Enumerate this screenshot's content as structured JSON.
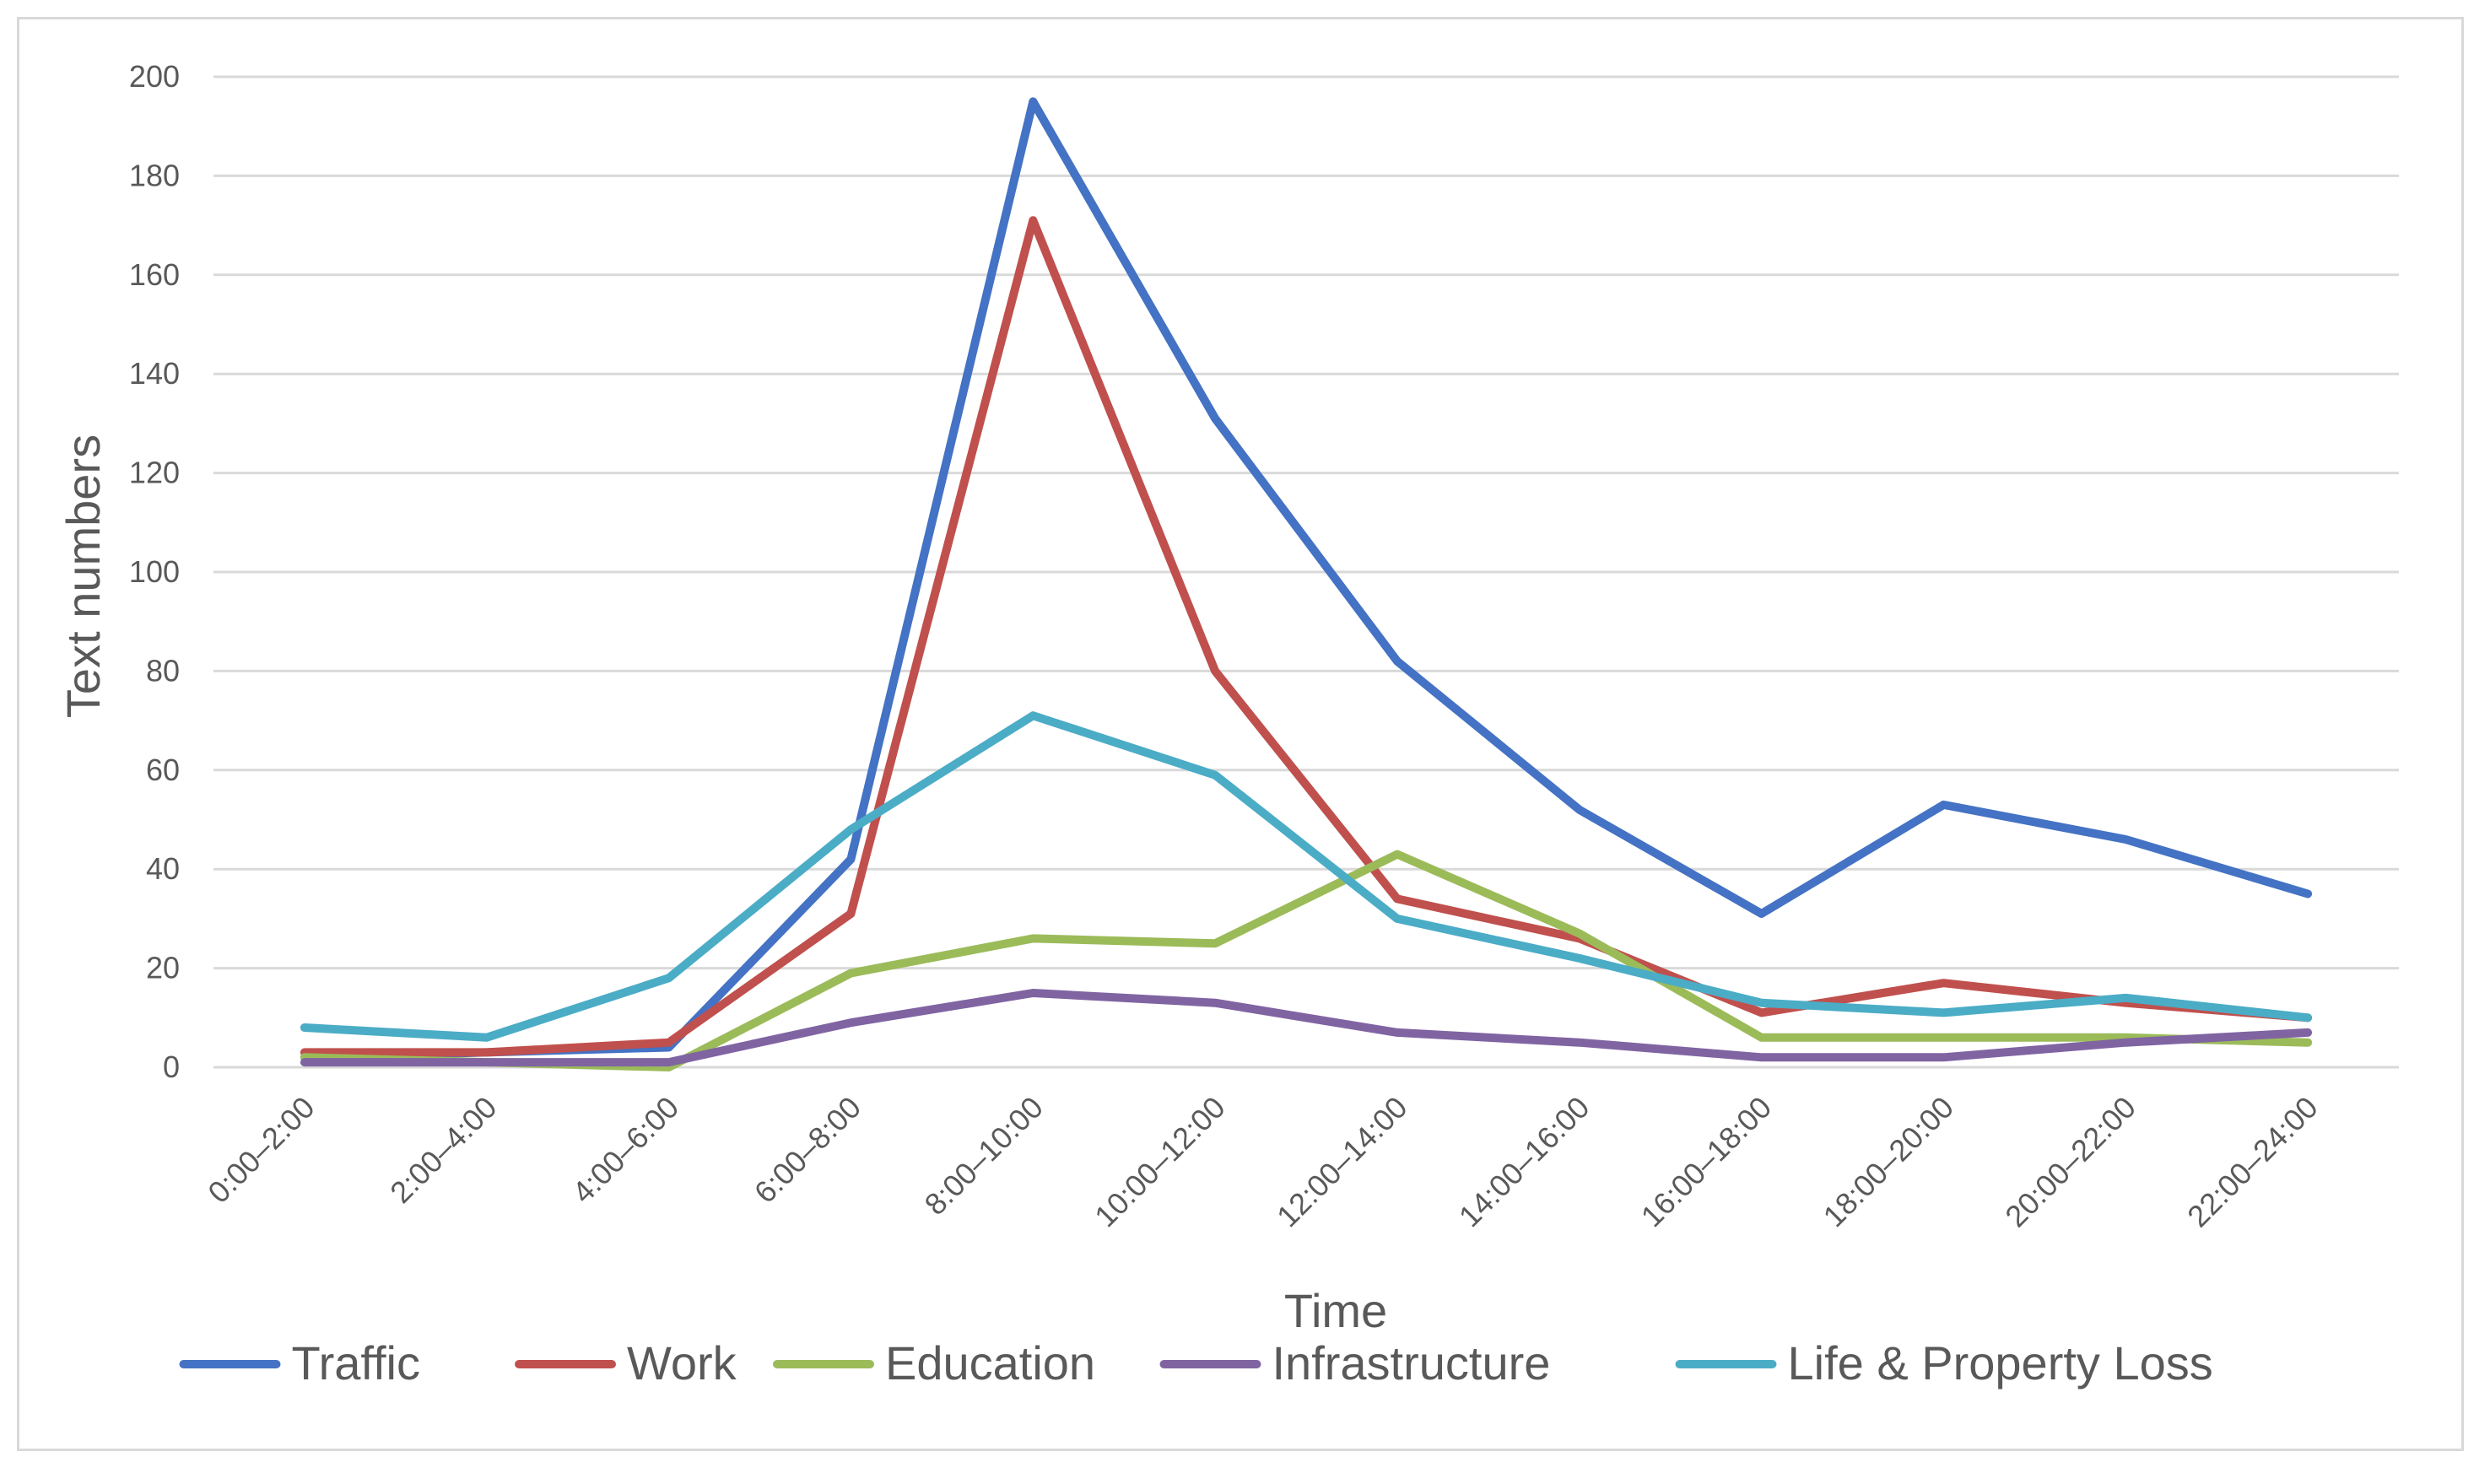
{
  "chart_data": {
    "type": "line",
    "title": "",
    "xlabel": "Time",
    "ylabel": "Text numbers",
    "ylim": [
      0,
      200
    ],
    "yticks": [
      0,
      20,
      40,
      60,
      80,
      100,
      120,
      140,
      160,
      180,
      200
    ],
    "grid": true,
    "legend_position": "bottom",
    "categories": [
      "0:00–2:00",
      "2:00–4:00",
      "4:00–6:00",
      "6:00–8:00",
      "8:00–10:00",
      "10:00–12:00",
      "12:00–14:00",
      "14:00–16:00",
      "16:00–18:00",
      "18:00–20:00",
      "20:00–22:00",
      "22:00–24:00"
    ],
    "series": [
      {
        "name": "Traffic",
        "color": "#4472c4",
        "values": [
          2,
          3,
          4,
          42,
          195,
          131,
          82,
          52,
          31,
          53,
          46,
          35
        ]
      },
      {
        "name": "Work",
        "color": "#c0504d",
        "values": [
          3,
          3,
          5,
          31,
          171,
          80,
          34,
          26,
          11,
          17,
          13,
          10
        ]
      },
      {
        "name": "Education",
        "color": "#9bbb59",
        "values": [
          2,
          1,
          0,
          19,
          26,
          25,
          43,
          27,
          6,
          6,
          6,
          5
        ]
      },
      {
        "name": "Infrastructure",
        "color": "#8064a2",
        "values": [
          1,
          1,
          1,
          9,
          15,
          13,
          7,
          5,
          2,
          2,
          5,
          7
        ]
      },
      {
        "name": "Life & Property Loss",
        "color": "#4bacc6",
        "values": [
          8,
          6,
          18,
          48,
          71,
          59,
          30,
          22,
          13,
          11,
          14,
          10
        ]
      }
    ]
  }
}
